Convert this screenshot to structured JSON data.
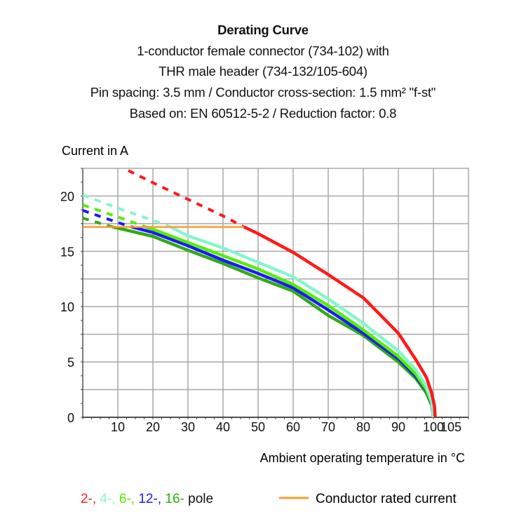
{
  "chart_data": {
    "type": "line",
    "title": "Derating Curve",
    "subtitle_lines": [
      "1-conductor female connector (734-102) with",
      "THR male header (734-132/105-604)",
      "Pin spacing: 3.5 mm / Conductor cross-section: 1.5 mm² \"f-st\"",
      "Based on: EN 60512-5-2 / Reduction factor: 0.8"
    ],
    "ylabel": "Current in A",
    "xlabel": "Ambient operating temperature in °C",
    "xlim": [
      0,
      110
    ],
    "ylim": [
      0,
      22.5
    ],
    "x_ticks": [
      10,
      20,
      30,
      40,
      50,
      60,
      70,
      80,
      90,
      100,
      105
    ],
    "y_ticks": [
      0,
      5,
      10,
      15,
      20
    ],
    "grid": true,
    "rated_current": {
      "name": "Conductor rated current",
      "value": 17.2,
      "x_range": [
        0,
        46
      ],
      "color": "#ff9a2e"
    },
    "series": [
      {
        "name": "2-",
        "color": "#ff1a1a",
        "points": [
          [
            13,
            22.3
          ],
          [
            20,
            21.2
          ],
          [
            30,
            19.7
          ],
          [
            40,
            18.2
          ],
          [
            46,
            17.2
          ],
          [
            50,
            16.6
          ],
          [
            60,
            14.9
          ],
          [
            70,
            12.9
          ],
          [
            80,
            10.8
          ],
          [
            90,
            7.6
          ],
          [
            95,
            5.2
          ],
          [
            98,
            3.6
          ],
          [
            99.5,
            2.2
          ],
          [
            100.3,
            1
          ],
          [
            100.5,
            0
          ]
        ]
      },
      {
        "name": "4-",
        "color": "#86f5cf",
        "points": [
          [
            0,
            20.1
          ],
          [
            10,
            18.9
          ],
          [
            20,
            17.8
          ],
          [
            25,
            17.2
          ],
          [
            30,
            16.4
          ],
          [
            40,
            15.3
          ],
          [
            50,
            14.0
          ],
          [
            60,
            12.7
          ],
          [
            70,
            10.7
          ],
          [
            80,
            8.5
          ],
          [
            90,
            6.0
          ],
          [
            95,
            4.3
          ],
          [
            98,
            2.8
          ],
          [
            99.5,
            1.5
          ],
          [
            100,
            0
          ]
        ]
      },
      {
        "name": "6-",
        "color": "#55ee00",
        "points": [
          [
            0,
            19.2
          ],
          [
            10,
            18.1
          ],
          [
            18,
            17.2
          ],
          [
            20,
            17.0
          ],
          [
            30,
            15.8
          ],
          [
            40,
            14.6
          ],
          [
            50,
            13.4
          ],
          [
            60,
            12.0
          ],
          [
            70,
            10.1
          ],
          [
            80,
            7.9
          ],
          [
            90,
            5.5
          ],
          [
            95,
            3.9
          ],
          [
            98,
            2.5
          ],
          [
            99.5,
            1.3
          ],
          [
            100,
            0
          ]
        ]
      },
      {
        "name": "12-",
        "color": "#1a1aff",
        "points": [
          [
            0,
            18.7
          ],
          [
            10,
            17.6
          ],
          [
            14,
            17.2
          ],
          [
            20,
            16.7
          ],
          [
            30,
            15.5
          ],
          [
            40,
            14.2
          ],
          [
            50,
            13.0
          ],
          [
            60,
            11.7
          ],
          [
            70,
            9.7
          ],
          [
            80,
            7.6
          ],
          [
            90,
            5.3
          ],
          [
            95,
            3.7
          ],
          [
            98,
            2.4
          ],
          [
            99.5,
            1.2
          ],
          [
            100,
            0
          ]
        ]
      },
      {
        "name": "16-",
        "color": "#33aa11",
        "points": [
          [
            0,
            18.0
          ],
          [
            8.5,
            17.2
          ],
          [
            10,
            17.1
          ],
          [
            20,
            16.35
          ],
          [
            30,
            15.1
          ],
          [
            40,
            13.9
          ],
          [
            50,
            12.6
          ],
          [
            60,
            11.4
          ],
          [
            70,
            9.2
          ],
          [
            80,
            7.4
          ],
          [
            90,
            5.0
          ],
          [
            95,
            3.5
          ],
          [
            98,
            2.2
          ],
          [
            99.5,
            1.1
          ],
          [
            100,
            0
          ]
        ]
      }
    ],
    "legend": {
      "pole_suffix": "pole",
      "placement": "bottom"
    }
  }
}
